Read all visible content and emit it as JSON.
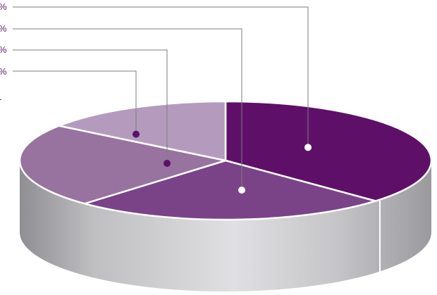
{
  "chart_data": {
    "type": "pie",
    "three_d": true,
    "title": "",
    "slices": [
      {
        "label": "",
        "value": 37,
        "color": "#5e1068",
        "marker_color": "#ffffff"
      },
      {
        "label": "",
        "value": 25,
        "color": "#7a4387",
        "marker_color": "#ffffff"
      },
      {
        "label": "",
        "value": 23,
        "color": "#98739f",
        "marker_color": "#5e1068"
      },
      {
        "label": "",
        "value": 15,
        "color": "#b49bbd",
        "marker_color": "#5e1068"
      }
    ],
    "callout_texts": [
      "%",
      "%",
      "%",
      "%",
      "-"
    ],
    "legend_position": "left",
    "callout_line_color": "#7d7d7d",
    "side_color": "#b9b9bc"
  }
}
